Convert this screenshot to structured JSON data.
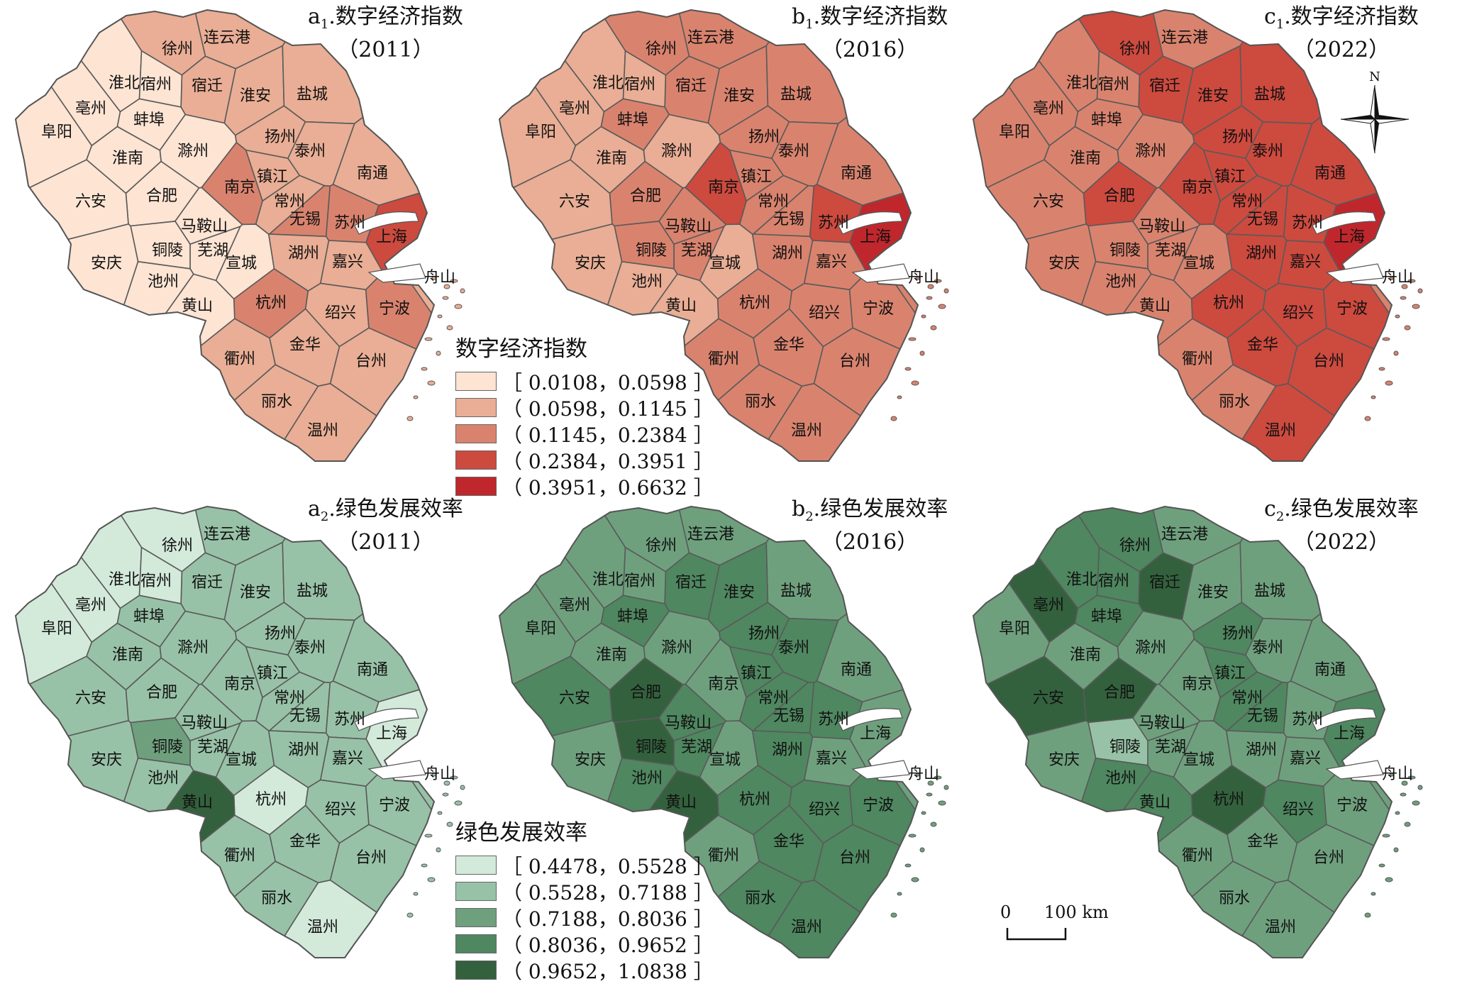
{
  "maps": [
    {
      "id": "a1",
      "prefix": "a",
      "sub": "1",
      "name": ".数字经济指数",
      "year": "（2011）",
      "variable": "digital"
    },
    {
      "id": "b1",
      "prefix": "b",
      "sub": "1",
      "name": ".数字经济指数",
      "year": "（2016）",
      "variable": "digital"
    },
    {
      "id": "c1",
      "prefix": "c",
      "sub": "1",
      "name": ".数字经济指数",
      "year": "（2022）",
      "variable": "digital"
    },
    {
      "id": "a2",
      "prefix": "a",
      "sub": "2",
      "name": ".绿色发展效率",
      "year": "（2011）",
      "variable": "green"
    },
    {
      "id": "b2",
      "prefix": "b",
      "sub": "2",
      "name": ".绿色发展效率",
      "year": "（2016）",
      "variable": "green"
    },
    {
      "id": "c2",
      "prefix": "c",
      "sub": "2",
      "name": ".绿色发展效率",
      "year": "（2022）",
      "variable": "green"
    }
  ],
  "legends": {
    "digital": {
      "title": "数字经济指数",
      "classes": [
        {
          "label": "［ 0.0108，0.0598 ］",
          "color": "#fde4d3"
        },
        {
          "label": "（ 0.0598，0.1145 ］",
          "color": "#e9ae95"
        },
        {
          "label": "（ 0.1145，0.2384 ］",
          "color": "#d9836e"
        },
        {
          "label": "（ 0.2384，0.3951 ］",
          "color": "#cd4a3f"
        },
        {
          "label": "（ 0.3951，0.6632 ］",
          "color": "#c0272d"
        }
      ]
    },
    "green": {
      "title": "绿色发展效率",
      "classes": [
        {
          "label": "［ 0.4478，0.5528 ］",
          "color": "#d3eadb"
        },
        {
          "label": "（ 0.5528，0.7188 ］",
          "color": "#98c2a7"
        },
        {
          "label": "（ 0.7188，0.8036 ］",
          "color": "#6fa07e"
        },
        {
          "label": "（ 0.8036，0.9652 ］",
          "color": "#4f8760"
        },
        {
          "label": "（ 0.9652，1.0838 ］",
          "color": "#33613d"
        }
      ]
    }
  },
  "north_label": "N",
  "scale_bar": {
    "zero": "0",
    "distance": "100 km"
  },
  "cities": [
    "连云港",
    "徐州",
    "宿迁",
    "淮北",
    "宿州",
    "亳州",
    "淮安",
    "盐城",
    "蚌埠",
    "阜阳",
    "扬州",
    "泰州",
    "滁州",
    "淮南",
    "南通",
    "南京",
    "镇江",
    "合肥",
    "六安",
    "常州",
    "马鞍山",
    "无锡",
    "苏州",
    "芜湖",
    "上海",
    "铜陵",
    "宣城",
    "湖州",
    "嘉兴",
    "安庆",
    "池州",
    "舟山",
    "杭州",
    "绍兴",
    "宁波",
    "黄山",
    "金华",
    "衢州",
    "台州",
    "丽水",
    "温州"
  ],
  "classes_by_map": {
    "a1": {
      "连云港": 2,
      "徐州": 2,
      "宿迁": 2,
      "淮北": 1,
      "宿州": 1,
      "亳州": 1,
      "淮安": 2,
      "盐城": 2,
      "蚌埠": 1,
      "阜阳": 1,
      "扬州": 2,
      "泰州": 2,
      "滁州": 1,
      "淮南": 1,
      "南通": 2,
      "南京": 3,
      "镇江": 2,
      "合肥": 1,
      "六安": 1,
      "常州": 2,
      "马鞍山": 1,
      "无锡": 3,
      "苏州": 3,
      "芜湖": 1,
      "上海": 4,
      "铜陵": 1,
      "宣城": 1,
      "湖州": 2,
      "嘉兴": 2,
      "安庆": 1,
      "池州": 1,
      "舟山": 2,
      "杭州": 3,
      "绍兴": 2,
      "宁波": 3,
      "黄山": 1,
      "金华": 2,
      "衢州": 2,
      "台州": 2,
      "丽水": 2,
      "温州": 2
    },
    "b1": {
      "连云港": 3,
      "徐州": 3,
      "宿迁": 3,
      "淮北": 2,
      "宿州": 2,
      "亳州": 2,
      "淮安": 3,
      "盐城": 3,
      "蚌埠": 3,
      "阜阳": 2,
      "扬州": 3,
      "泰州": 3,
      "滁州": 2,
      "淮南": 2,
      "南通": 3,
      "南京": 4,
      "镇江": 3,
      "合肥": 3,
      "六安": 2,
      "常州": 3,
      "马鞍山": 3,
      "无锡": 3,
      "苏州": 4,
      "芜湖": 3,
      "上海": 5,
      "铜陵": 3,
      "宣城": 2,
      "湖州": 3,
      "嘉兴": 3,
      "安庆": 2,
      "池州": 2,
      "舟山": 3,
      "杭州": 3,
      "绍兴": 3,
      "宁波": 3,
      "黄山": 2,
      "金华": 3,
      "衢州": 3,
      "台州": 3,
      "丽水": 3,
      "温州": 3
    },
    "c1": {
      "连云港": 3,
      "徐州": 4,
      "宿迁": 4,
      "淮北": 3,
      "宿州": 3,
      "亳州": 3,
      "淮安": 4,
      "盐城": 4,
      "蚌埠": 3,
      "阜阳": 3,
      "扬州": 4,
      "泰州": 4,
      "滁州": 3,
      "淮南": 3,
      "南通": 4,
      "南京": 4,
      "镇江": 4,
      "合肥": 4,
      "六安": 3,
      "常州": 4,
      "马鞍山": 3,
      "无锡": 4,
      "苏州": 4,
      "芜湖": 3,
      "上海": 5,
      "铜陵": 3,
      "宣城": 3,
      "湖州": 4,
      "嘉兴": 4,
      "安庆": 3,
      "池州": 3,
      "舟山": 3,
      "杭州": 4,
      "绍兴": 4,
      "宁波": 4,
      "黄山": 3,
      "金华": 4,
      "衢州": 3,
      "台州": 4,
      "丽水": 3,
      "温州": 4
    },
    "a2": {
      "连云港": 2,
      "徐州": 1,
      "宿迁": 2,
      "淮北": 1,
      "宿州": 1,
      "亳州": 1,
      "淮安": 2,
      "盐城": 2,
      "蚌埠": 2,
      "阜阳": 1,
      "扬州": 2,
      "泰州": 2,
      "滁州": 2,
      "淮南": 2,
      "南通": 2,
      "南京": 2,
      "镇江": 2,
      "合肥": 2,
      "六安": 2,
      "常州": 2,
      "马鞍山": 2,
      "无锡": 2,
      "苏州": 2,
      "芜湖": 2,
      "上海": 1,
      "铜陵": 3,
      "宣城": 2,
      "湖州": 2,
      "嘉兴": 2,
      "安庆": 2,
      "池州": 2,
      "舟山": 2,
      "杭州": 1,
      "绍兴": 2,
      "宁波": 2,
      "黄山": 5,
      "金华": 2,
      "衢州": 2,
      "台州": 2,
      "丽水": 2,
      "温州": 1
    },
    "b2": {
      "连云港": 3,
      "徐州": 3,
      "宿迁": 4,
      "淮北": 3,
      "宿州": 3,
      "亳州": 3,
      "淮安": 4,
      "盐城": 3,
      "蚌埠": 4,
      "阜阳": 3,
      "扬州": 4,
      "泰州": 4,
      "滁州": 3,
      "淮南": 3,
      "南通": 3,
      "南京": 3,
      "镇江": 4,
      "合肥": 5,
      "六安": 4,
      "常州": 4,
      "马鞍山": 4,
      "无锡": 4,
      "苏州": 4,
      "芜湖": 4,
      "上海": 3,
      "铜陵": 5,
      "宣城": 3,
      "湖州": 4,
      "嘉兴": 3,
      "安庆": 3,
      "池州": 4,
      "舟山": 3,
      "杭州": 4,
      "绍兴": 4,
      "宁波": 4,
      "黄山": 5,
      "金华": 4,
      "衢州": 3,
      "台州": 4,
      "丽水": 4,
      "温州": 4
    },
    "c2": {
      "连云港": 3,
      "徐州": 4,
      "宿迁": 5,
      "淮北": 4,
      "宿州": 4,
      "亳州": 5,
      "淮安": 3,
      "盐城": 3,
      "蚌埠": 4,
      "阜阳": 3,
      "扬州": 4,
      "泰州": 3,
      "滁州": 3,
      "淮南": 3,
      "南通": 3,
      "南京": 3,
      "镇江": 4,
      "合肥": 5,
      "六安": 5,
      "常州": 4,
      "马鞍山": 3,
      "无锡": 4,
      "苏州": 3,
      "芜湖": 3,
      "上海": 4,
      "铜陵": 2,
      "宣城": 3,
      "湖州": 3,
      "嘉兴": 3,
      "安庆": 3,
      "池州": 4,
      "舟山": 3,
      "杭州": 5,
      "绍兴": 4,
      "宁波": 3,
      "黄山": 4,
      "金华": 3,
      "衢州": 3,
      "台州": 3,
      "丽水": 3,
      "温州": 3
    }
  }
}
